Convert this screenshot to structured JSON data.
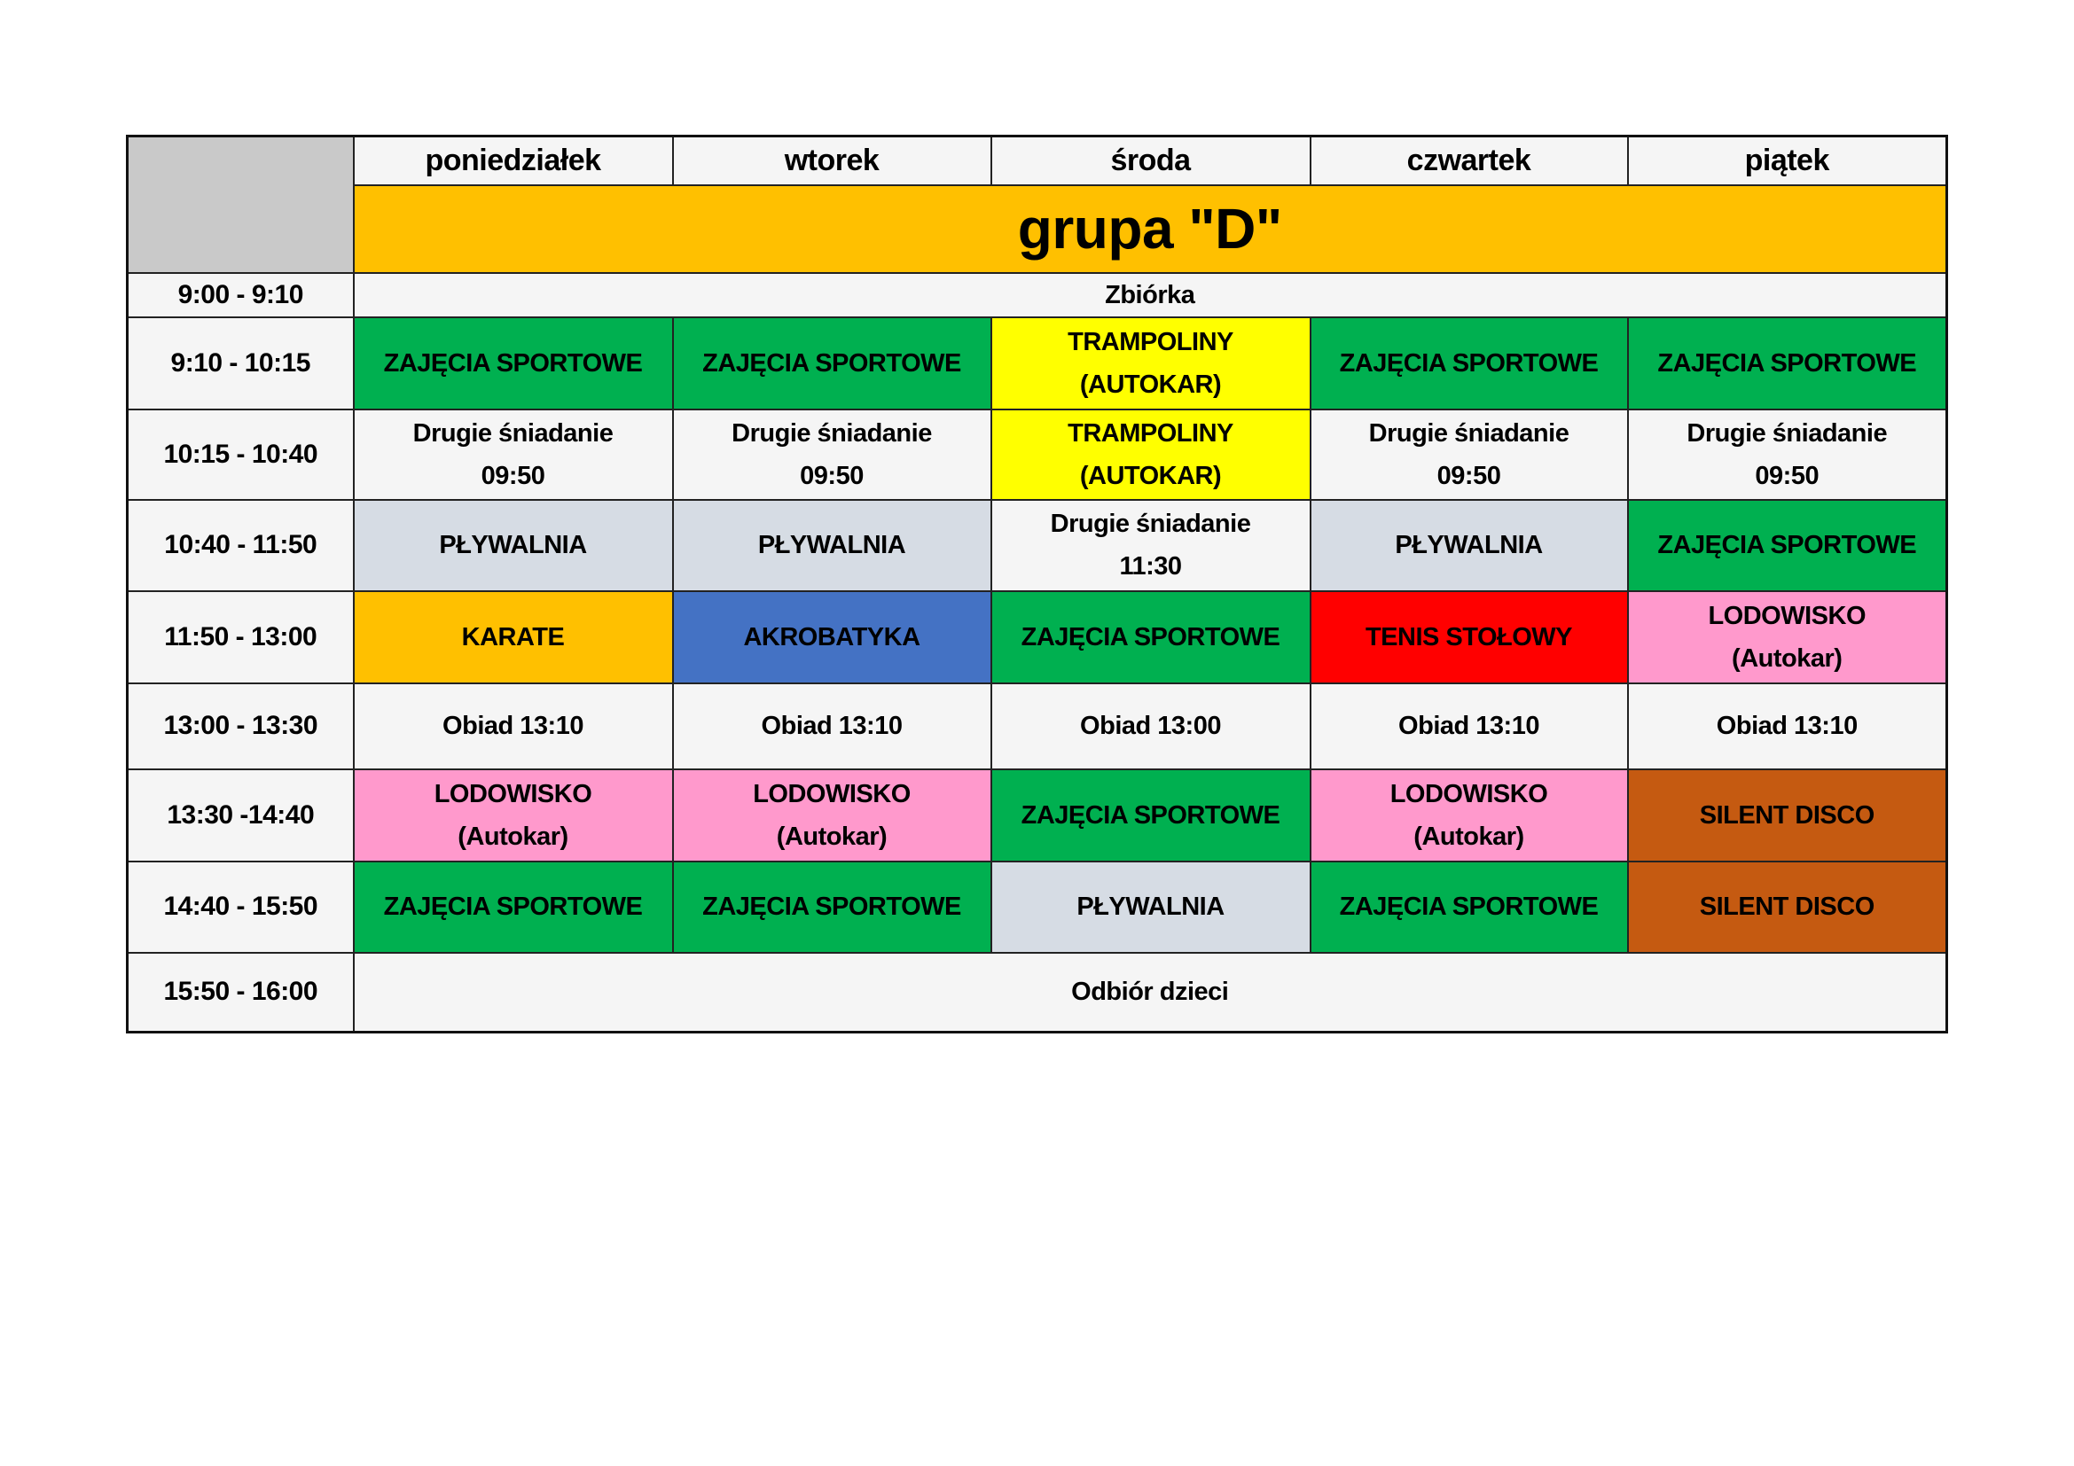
{
  "days": [
    "poniedziałek",
    "wtorek",
    "środa",
    "czwartek",
    "piątek"
  ],
  "group_title": "grupa \"D\"",
  "colors": {
    "group_header": "#ffc000",
    "corner": "#c9c9c9",
    "green": "#00b050",
    "yellow": "#ffff00",
    "grey": "#d6dce4",
    "orange": "#ffc000",
    "blue": "#4472c4",
    "red": "#ff0000",
    "pink": "#ff99cc",
    "brown": "#c55a11",
    "plain": "#f5f5f5"
  },
  "rows": [
    {
      "time": "9:00 - 9:10",
      "cells": [
        {
          "text": "Zbiórka",
          "color": "plain",
          "span": 5
        }
      ]
    },
    {
      "time": "9:10 - 10:15",
      "cells": [
        {
          "text": "ZAJĘCIA SPORTOWE",
          "color": "green"
        },
        {
          "text": "ZAJĘCIA SPORTOWE",
          "color": "green"
        },
        {
          "text": "TRAMPOLINY\n(AUTOKAR)",
          "color": "yellow"
        },
        {
          "text": "ZAJĘCIA SPORTOWE",
          "color": "green"
        },
        {
          "text": "ZAJĘCIA SPORTOWE",
          "color": "green"
        }
      ]
    },
    {
      "time": "10:15 - 10:40",
      "cells": [
        {
          "text": "Drugie śniadanie\n09:50",
          "color": "plain"
        },
        {
          "text": "Drugie śniadanie\n09:50",
          "color": "plain"
        },
        {
          "text": "TRAMPOLINY\n(AUTOKAR)",
          "color": "yellow"
        },
        {
          "text": "Drugie śniadanie\n09:50",
          "color": "plain"
        },
        {
          "text": "Drugie śniadanie\n09:50",
          "color": "plain"
        }
      ]
    },
    {
      "time": "10:40 - 11:50",
      "cells": [
        {
          "text": "PŁYWALNIA",
          "color": "grey"
        },
        {
          "text": "PŁYWALNIA",
          "color": "grey"
        },
        {
          "text": "Drugie śniadanie\n11:30",
          "color": "plain"
        },
        {
          "text": "PŁYWALNIA",
          "color": "grey"
        },
        {
          "text": "ZAJĘCIA SPORTOWE",
          "color": "green"
        }
      ]
    },
    {
      "time": "11:50 - 13:00",
      "cells": [
        {
          "text": "KARATE",
          "color": "orange"
        },
        {
          "text": "AKROBATYKA",
          "color": "blue"
        },
        {
          "text": "ZAJĘCIA SPORTOWE",
          "color": "green"
        },
        {
          "text": "TENIS STOŁOWY",
          "color": "red"
        },
        {
          "text": "LODOWISKO\n(Autokar)",
          "color": "pink"
        }
      ]
    },
    {
      "time": "13:00 - 13:30",
      "cells": [
        {
          "text": "Obiad 13:10",
          "color": "plain"
        },
        {
          "text": "Obiad 13:10",
          "color": "plain"
        },
        {
          "text": "Obiad 13:00",
          "color": "plain"
        },
        {
          "text": "Obiad 13:10",
          "color": "plain"
        },
        {
          "text": "Obiad 13:10",
          "color": "plain"
        }
      ]
    },
    {
      "time": "13:30 -14:40",
      "cells": [
        {
          "text": "LODOWISKO\n(Autokar)",
          "color": "pink"
        },
        {
          "text": "LODOWISKO\n(Autokar)",
          "color": "pink"
        },
        {
          "text": "ZAJĘCIA SPORTOWE",
          "color": "green"
        },
        {
          "text": "LODOWISKO\n(Autokar)",
          "color": "pink"
        },
        {
          "text": "SILENT DISCO",
          "color": "brown"
        }
      ]
    },
    {
      "time": "14:40 - 15:50",
      "cells": [
        {
          "text": "ZAJĘCIA SPORTOWE",
          "color": "green"
        },
        {
          "text": "ZAJĘCIA SPORTOWE",
          "color": "green"
        },
        {
          "text": "PŁYWALNIA",
          "color": "grey"
        },
        {
          "text": "ZAJĘCIA SPORTOWE",
          "color": "green"
        },
        {
          "text": "SILENT DISCO",
          "color": "brown"
        }
      ]
    },
    {
      "time": "15:50 - 16:00",
      "cells": [
        {
          "text": "Odbiór dzieci",
          "color": "plain",
          "span": 5
        }
      ]
    }
  ]
}
